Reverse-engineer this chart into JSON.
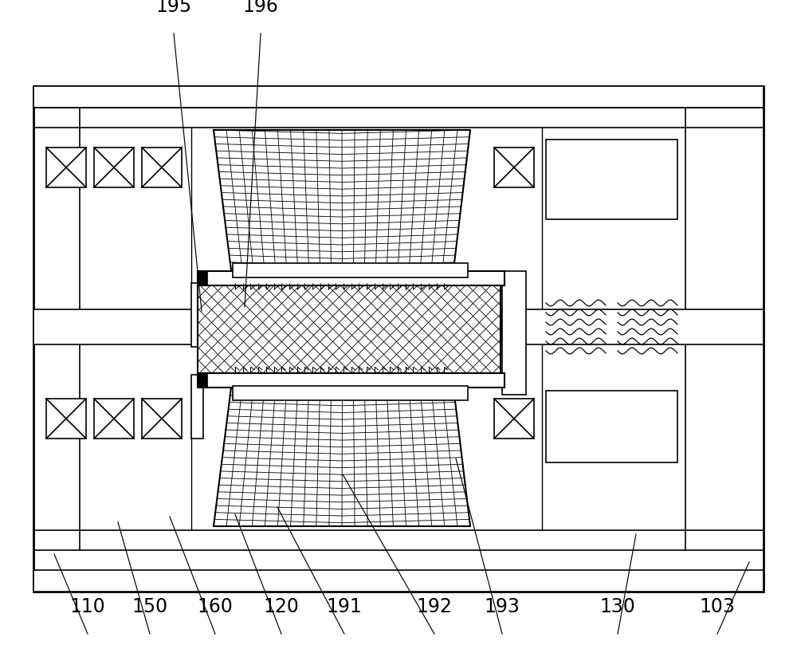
{
  "fig_width": 10.0,
  "fig_height": 8.24,
  "dpi": 100,
  "bg_color": "#ffffff",
  "lc": "#000000",
  "lw": 1.5,
  "tlw": 0.6,
  "annotations": [
    [
      "110",
      110,
      795,
      68,
      695
    ],
    [
      "150",
      188,
      795,
      148,
      655
    ],
    [
      "160",
      270,
      795,
      213,
      648
    ],
    [
      "120",
      353,
      795,
      295,
      645
    ],
    [
      "191",
      432,
      795,
      348,
      636
    ],
    [
      "192",
      545,
      795,
      430,
      595
    ],
    [
      "193",
      630,
      795,
      572,
      575
    ],
    [
      "130",
      775,
      795,
      798,
      670
    ],
    [
      "103",
      900,
      795,
      940,
      705
    ],
    [
      "195",
      218,
      42,
      253,
      390
    ],
    [
      "196",
      327,
      42,
      307,
      385
    ]
  ]
}
